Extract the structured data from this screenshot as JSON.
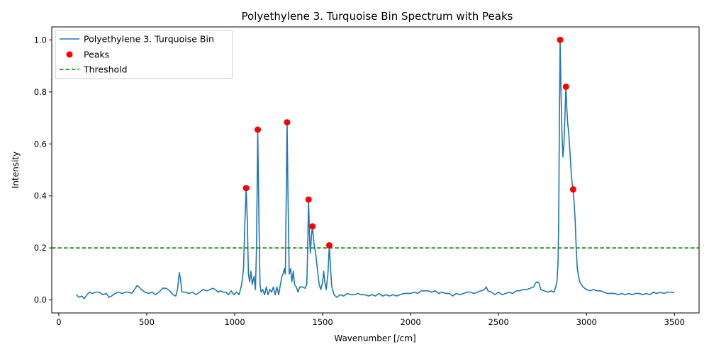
{
  "chart_data": {
    "type": "line",
    "title": "Polyethylene 3. Turquoise Bin Spectrum with Peaks",
    "xlabel": "Wavenumber [/cm]",
    "ylabel": "Intensity",
    "xlim": [
      -40,
      3640
    ],
    "ylim": [
      -0.05,
      1.05
    ],
    "xticks": [
      0,
      500,
      1000,
      1500,
      2000,
      2500,
      3000,
      3500
    ],
    "yticks": [
      0.0,
      0.2,
      0.4,
      0.6,
      0.8,
      1.0
    ],
    "grid": false,
    "legend_position": "top-left",
    "series": [
      {
        "name": "Polyethylene 3. Turquoise Bin",
        "color": "#1f77b4",
        "points": [
          [
            100,
            0.02
          ],
          [
            115,
            0.01
          ],
          [
            130,
            0.015
          ],
          [
            145,
            0.005
          ],
          [
            160,
            0.02
          ],
          [
            175,
            0.03
          ],
          [
            190,
            0.025
          ],
          [
            210,
            0.03
          ],
          [
            230,
            0.03
          ],
          [
            250,
            0.02
          ],
          [
            270,
            0.025
          ],
          [
            285,
            0.01
          ],
          [
            300,
            0.015
          ],
          [
            320,
            0.025
          ],
          [
            340,
            0.03
          ],
          [
            360,
            0.025
          ],
          [
            380,
            0.03
          ],
          [
            400,
            0.03
          ],
          [
            415,
            0.025
          ],
          [
            430,
            0.04
          ],
          [
            445,
            0.055
          ],
          [
            455,
            0.05
          ],
          [
            470,
            0.04
          ],
          [
            490,
            0.03
          ],
          [
            510,
            0.025
          ],
          [
            530,
            0.03
          ],
          [
            550,
            0.02
          ],
          [
            570,
            0.03
          ],
          [
            590,
            0.045
          ],
          [
            610,
            0.045
          ],
          [
            630,
            0.035
          ],
          [
            650,
            0.02
          ],
          [
            665,
            0.015
          ],
          [
            675,
            0.04
          ],
          [
            685,
            0.105
          ],
          [
            692,
            0.08
          ],
          [
            700,
            0.03
          ],
          [
            720,
            0.03
          ],
          [
            740,
            0.025
          ],
          [
            760,
            0.03
          ],
          [
            780,
            0.02
          ],
          [
            800,
            0.03
          ],
          [
            820,
            0.04
          ],
          [
            840,
            0.035
          ],
          [
            860,
            0.04
          ],
          [
            875,
            0.045
          ],
          [
            890,
            0.04
          ],
          [
            905,
            0.03
          ],
          [
            920,
            0.035
          ],
          [
            935,
            0.03
          ],
          [
            950,
            0.03
          ],
          [
            965,
            0.02
          ],
          [
            980,
            0.035
          ],
          [
            995,
            0.02
          ],
          [
            1010,
            0.03
          ],
          [
            1025,
            0.02
          ],
          [
            1040,
            0.06
          ],
          [
            1050,
            0.12
          ],
          [
            1058,
            0.3
          ],
          [
            1065,
            0.43
          ],
          [
            1072,
            0.3
          ],
          [
            1078,
            0.1
          ],
          [
            1085,
            0.07
          ],
          [
            1092,
            0.11
          ],
          [
            1100,
            0.06
          ],
          [
            1110,
            0.09
          ],
          [
            1118,
            0.04
          ],
          [
            1124,
            0.2
          ],
          [
            1131,
            0.655
          ],
          [
            1138,
            0.3
          ],
          [
            1144,
            0.06
          ],
          [
            1150,
            0.03
          ],
          [
            1160,
            0.04
          ],
          [
            1170,
            0.02
          ],
          [
            1180,
            0.05
          ],
          [
            1190,
            0.02
          ],
          [
            1200,
            0.04
          ],
          [
            1210,
            0.03
          ],
          [
            1220,
            0.05
          ],
          [
            1230,
            0.02
          ],
          [
            1240,
            0.05
          ],
          [
            1250,
            0.02
          ],
          [
            1260,
            0.06
          ],
          [
            1268,
            0.09
          ],
          [
            1275,
            0.1
          ],
          [
            1282,
            0.12
          ],
          [
            1288,
            0.1
          ],
          [
            1293,
            0.4
          ],
          [
            1298,
            0.683
          ],
          [
            1303,
            0.4
          ],
          [
            1310,
            0.1
          ],
          [
            1318,
            0.12
          ],
          [
            1325,
            0.07
          ],
          [
            1333,
            0.11
          ],
          [
            1340,
            0.06
          ],
          [
            1350,
            0.05
          ],
          [
            1360,
            0.03
          ],
          [
            1370,
            0.05
          ],
          [
            1385,
            0.05
          ],
          [
            1400,
            0.045
          ],
          [
            1410,
            0.06
          ],
          [
            1415,
            0.2
          ],
          [
            1420,
            0.386
          ],
          [
            1425,
            0.25
          ],
          [
            1430,
            0.18
          ],
          [
            1437,
            0.25
          ],
          [
            1442,
            0.283
          ],
          [
            1450,
            0.22
          ],
          [
            1460,
            0.18
          ],
          [
            1470,
            0.12
          ],
          [
            1480,
            0.06
          ],
          [
            1490,
            0.04
          ],
          [
            1500,
            0.07
          ],
          [
            1506,
            0.11
          ],
          [
            1512,
            0.07
          ],
          [
            1520,
            0.04
          ],
          [
            1530,
            0.1
          ],
          [
            1538,
            0.21
          ],
          [
            1545,
            0.12
          ],
          [
            1552,
            0.05
          ],
          [
            1565,
            0.02
          ],
          [
            1580,
            0.01
          ],
          [
            1600,
            0.02
          ],
          [
            1620,
            0.015
          ],
          [
            1640,
            0.025
          ],
          [
            1660,
            0.02
          ],
          [
            1680,
            0.02
          ],
          [
            1700,
            0.025
          ],
          [
            1720,
            0.02
          ],
          [
            1740,
            0.02
          ],
          [
            1760,
            0.015
          ],
          [
            1780,
            0.02
          ],
          [
            1800,
            0.015
          ],
          [
            1820,
            0.025
          ],
          [
            1840,
            0.015
          ],
          [
            1860,
            0.02
          ],
          [
            1880,
            0.015
          ],
          [
            1900,
            0.02
          ],
          [
            1920,
            0.015
          ],
          [
            1940,
            0.02
          ],
          [
            1960,
            0.025
          ],
          [
            1980,
            0.025
          ],
          [
            2000,
            0.025
          ],
          [
            2020,
            0.03
          ],
          [
            2040,
            0.025
          ],
          [
            2060,
            0.035
          ],
          [
            2080,
            0.035
          ],
          [
            2100,
            0.035
          ],
          [
            2120,
            0.03
          ],
          [
            2140,
            0.035
          ],
          [
            2160,
            0.025
          ],
          [
            2180,
            0.03
          ],
          [
            2200,
            0.025
          ],
          [
            2220,
            0.025
          ],
          [
            2240,
            0.015
          ],
          [
            2260,
            0.025
          ],
          [
            2280,
            0.02
          ],
          [
            2300,
            0.025
          ],
          [
            2320,
            0.03
          ],
          [
            2340,
            0.03
          ],
          [
            2360,
            0.025
          ],
          [
            2380,
            0.03
          ],
          [
            2400,
            0.035
          ],
          [
            2420,
            0.04
          ],
          [
            2430,
            0.05
          ],
          [
            2440,
            0.035
          ],
          [
            2460,
            0.03
          ],
          [
            2480,
            0.02
          ],
          [
            2500,
            0.03
          ],
          [
            2520,
            0.02
          ],
          [
            2540,
            0.025
          ],
          [
            2560,
            0.03
          ],
          [
            2580,
            0.025
          ],
          [
            2600,
            0.035
          ],
          [
            2620,
            0.035
          ],
          [
            2640,
            0.04
          ],
          [
            2660,
            0.04
          ],
          [
            2680,
            0.045
          ],
          [
            2700,
            0.05
          ],
          [
            2710,
            0.065
          ],
          [
            2720,
            0.07
          ],
          [
            2730,
            0.065
          ],
          [
            2740,
            0.04
          ],
          [
            2760,
            0.035
          ],
          [
            2780,
            0.03
          ],
          [
            2800,
            0.035
          ],
          [
            2815,
            0.03
          ],
          [
            2825,
            0.05
          ],
          [
            2832,
            0.07
          ],
          [
            2838,
            0.14
          ],
          [
            2842,
            0.3
          ],
          [
            2846,
            0.7
          ],
          [
            2850,
            1.0
          ],
          [
            2855,
            0.8
          ],
          [
            2860,
            0.65
          ],
          [
            2866,
            0.55
          ],
          [
            2872,
            0.6
          ],
          [
            2878,
            0.72
          ],
          [
            2883,
            0.82
          ],
          [
            2888,
            0.74
          ],
          [
            2893,
            0.68
          ],
          [
            2898,
            0.65
          ],
          [
            2905,
            0.58
          ],
          [
            2912,
            0.5
          ],
          [
            2918,
            0.45
          ],
          [
            2924,
            0.425
          ],
          [
            2930,
            0.37
          ],
          [
            2936,
            0.3
          ],
          [
            2942,
            0.19
          ],
          [
            2948,
            0.12
          ],
          [
            2955,
            0.09
          ],
          [
            2962,
            0.07
          ],
          [
            2970,
            0.06
          ],
          [
            2980,
            0.05
          ],
          [
            2990,
            0.045
          ],
          [
            3000,
            0.04
          ],
          [
            3020,
            0.035
          ],
          [
            3040,
            0.04
          ],
          [
            3060,
            0.035
          ],
          [
            3080,
            0.035
          ],
          [
            3100,
            0.03
          ],
          [
            3120,
            0.025
          ],
          [
            3140,
            0.025
          ],
          [
            3160,
            0.025
          ],
          [
            3180,
            0.02
          ],
          [
            3200,
            0.025
          ],
          [
            3220,
            0.02
          ],
          [
            3240,
            0.025
          ],
          [
            3260,
            0.02
          ],
          [
            3280,
            0.025
          ],
          [
            3300,
            0.025
          ],
          [
            3320,
            0.02
          ],
          [
            3340,
            0.025
          ],
          [
            3360,
            0.02
          ],
          [
            3380,
            0.03
          ],
          [
            3400,
            0.025
          ],
          [
            3420,
            0.03
          ],
          [
            3440,
            0.025
          ],
          [
            3460,
            0.03
          ],
          [
            3480,
            0.03
          ],
          [
            3500,
            0.028
          ]
        ]
      },
      {
        "name": "Peaks",
        "color": "#ff0000",
        "points": [
          [
            1065,
            0.43
          ],
          [
            1131,
            0.655
          ],
          [
            1298,
            0.683
          ],
          [
            1420,
            0.386
          ],
          [
            1442,
            0.283
          ],
          [
            1538,
            0.21
          ],
          [
            2850,
            1.0
          ],
          [
            2883,
            0.82
          ],
          [
            2924,
            0.425
          ]
        ]
      },
      {
        "name": "Threshold",
        "color": "#008000",
        "value": 0.2
      }
    ]
  }
}
